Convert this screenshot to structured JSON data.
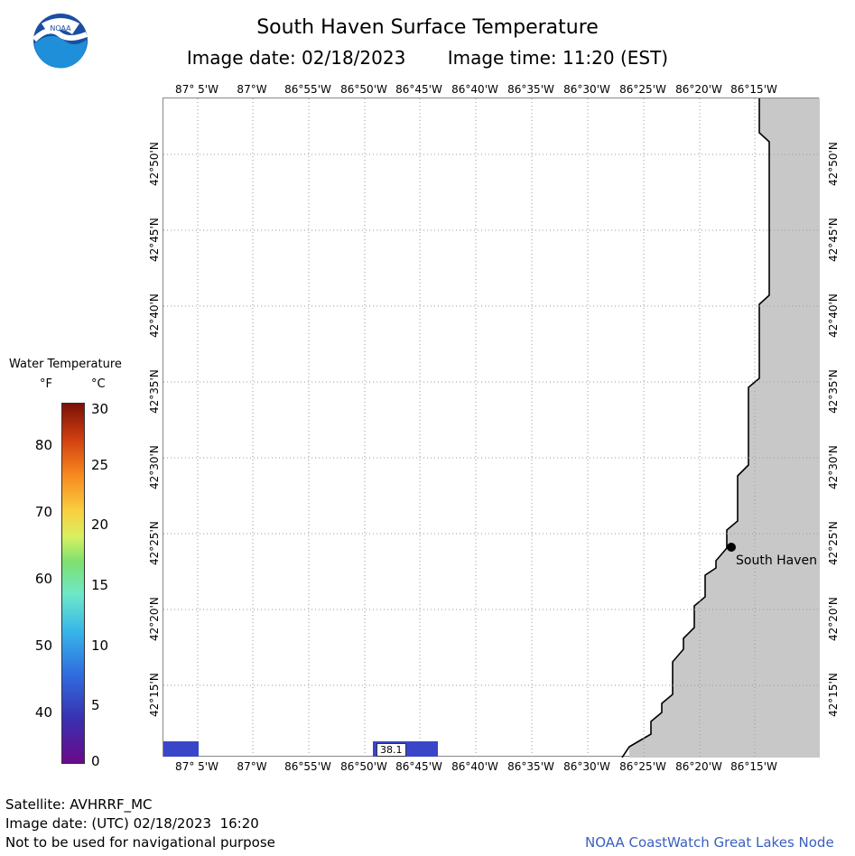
{
  "header": {
    "title": "South Haven Surface Temperature",
    "image_date_label": "Image date: 02/18/2023",
    "image_time_label": "Image time: 11:20 (EST)"
  },
  "logo": {
    "text": "NOAA"
  },
  "map": {
    "lon_labels": [
      "87° 5'W",
      "87°W",
      "86°55'W",
      "86°50'W",
      "86°45'W",
      "86°40'W",
      "86°35'W",
      "86°30'W",
      "86°25'W",
      "86°20'W",
      "86°15'W"
    ],
    "lat_labels": [
      "42°50'N",
      "42°45'N",
      "42°40'N",
      "42°35'N",
      "42°30'N",
      "42°25'N",
      "42°20'N",
      "42°15'N"
    ],
    "land_color": "#c8c8c8",
    "grid_color": "#9a9a9a",
    "buoy_color": "#3a46c8",
    "buoy_value": "38.1",
    "city": {
      "name": "South Haven",
      "lat": 42.4,
      "lon": -86.27
    }
  },
  "legend": {
    "title": "Water Temperature",
    "f_unit": "°F",
    "c_unit": "°C",
    "f_ticks": [
      "80",
      "70",
      "60",
      "50",
      "40"
    ],
    "c_ticks": [
      "30",
      "25",
      "20",
      "15",
      "10",
      "5",
      "0"
    ]
  },
  "footer": {
    "satellite": "Satellite: AVHRRF_MC",
    "utc_date": "Image date: (UTC) 02/18/2023  16:20",
    "disclaimer": "Not to be used for navigational purpose",
    "credit": "NOAA CoastWatch Great Lakes Node"
  }
}
